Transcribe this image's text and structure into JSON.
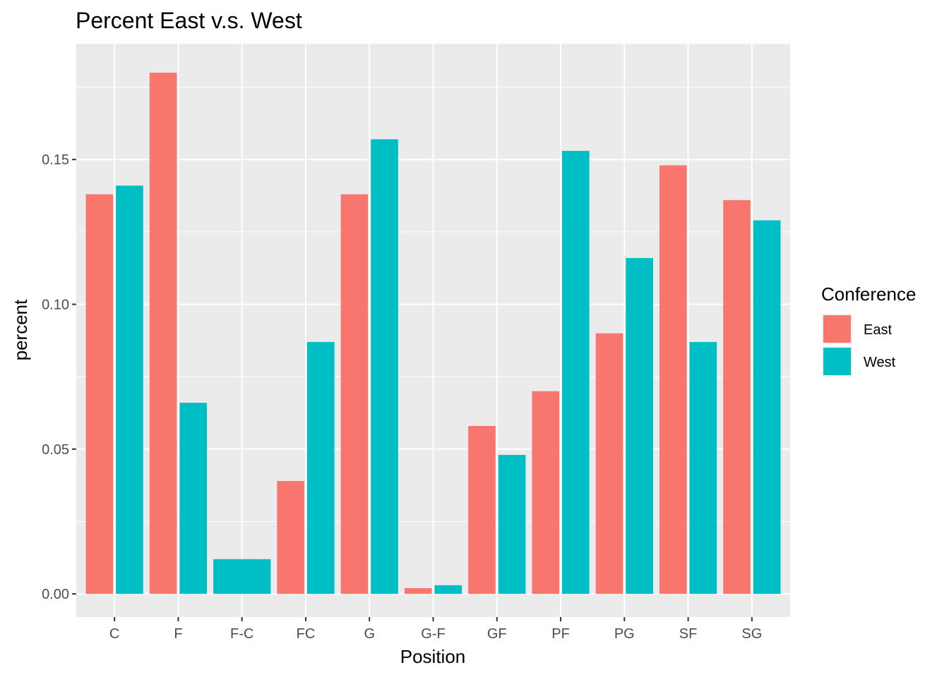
{
  "chart_data": {
    "type": "bar",
    "title": "Percent East v.s. West",
    "xlabel": "Position",
    "ylabel": "percent",
    "categories": [
      "C",
      "F",
      "F-C",
      "FC",
      "G",
      "G-F",
      "GF",
      "PF",
      "PG",
      "SF",
      "SG"
    ],
    "series": [
      {
        "name": "East",
        "color": "#F8766D",
        "values": [
          0.138,
          0.18,
          null,
          0.039,
          0.138,
          0.002,
          0.058,
          0.07,
          0.09,
          0.148,
          0.136
        ]
      },
      {
        "name": "West",
        "color": "#00BFC4",
        "values": [
          0.141,
          0.066,
          0.012,
          0.087,
          0.157,
          0.003,
          0.048,
          0.153,
          0.116,
          0.087,
          0.129
        ]
      }
    ],
    "ylim": [
      -0.008,
      0.19
    ],
    "yticks": [
      0.0,
      0.05,
      0.1,
      0.15
    ],
    "ytick_labels": [
      "0.00",
      "0.05",
      "0.10",
      "0.15"
    ],
    "grid": true,
    "panel_background": "#EBEBEB",
    "legend": {
      "title": "Conference",
      "position": "right"
    }
  }
}
